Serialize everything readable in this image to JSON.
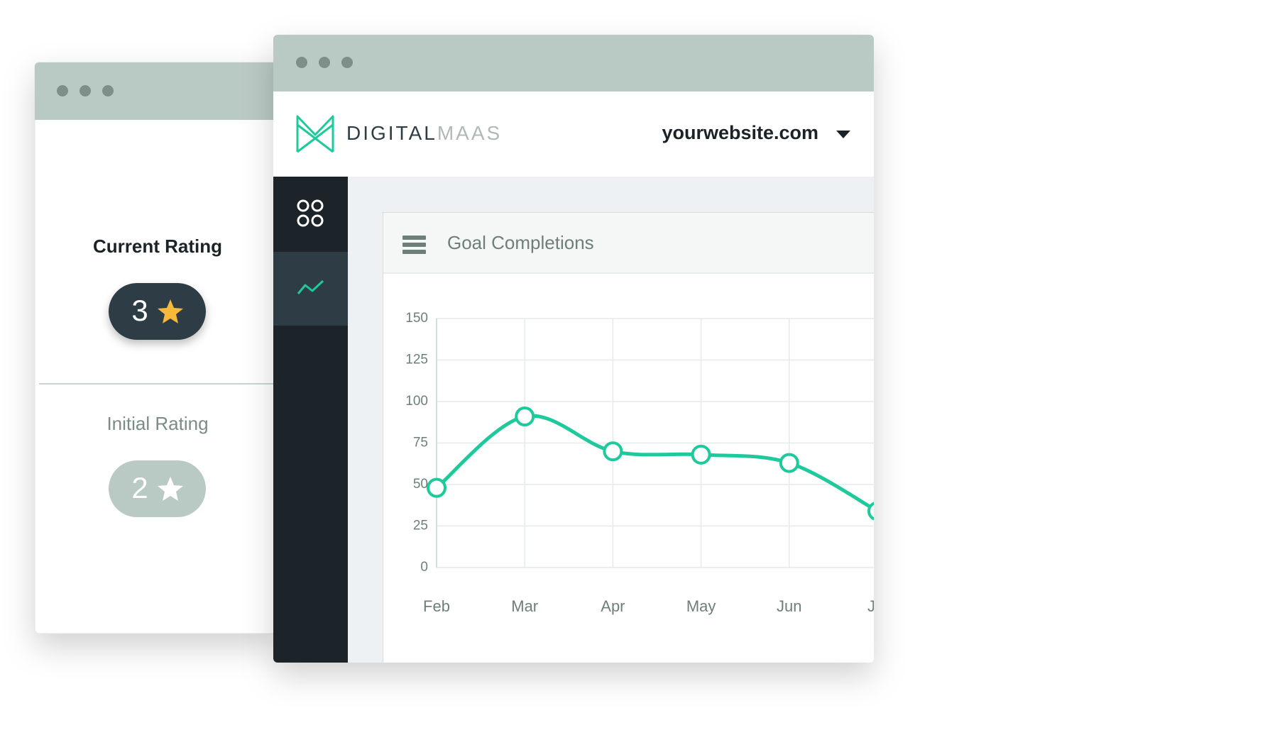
{
  "rating_panel": {
    "current_label": "Current Rating",
    "current_value": "3",
    "initial_label": "Initial Rating",
    "initial_value": "2"
  },
  "header": {
    "brand_part1": "DIGITAL",
    "brand_part2": "MAAS",
    "site": "yourwebsite.com"
  },
  "chart_data": {
    "type": "line",
    "title": "Goal Completions",
    "categories": [
      "Feb",
      "Mar",
      "Apr",
      "May",
      "Jun",
      "Jul"
    ],
    "series": [
      {
        "name": "Goal Completions",
        "color": "#1ec99b",
        "values": [
          48,
          91,
          70,
          68,
          63,
          34
        ]
      }
    ],
    "ylim": [
      0,
      150
    ],
    "yticks": [
      0,
      25,
      50,
      75,
      100,
      125,
      150
    ],
    "grid": true
  }
}
